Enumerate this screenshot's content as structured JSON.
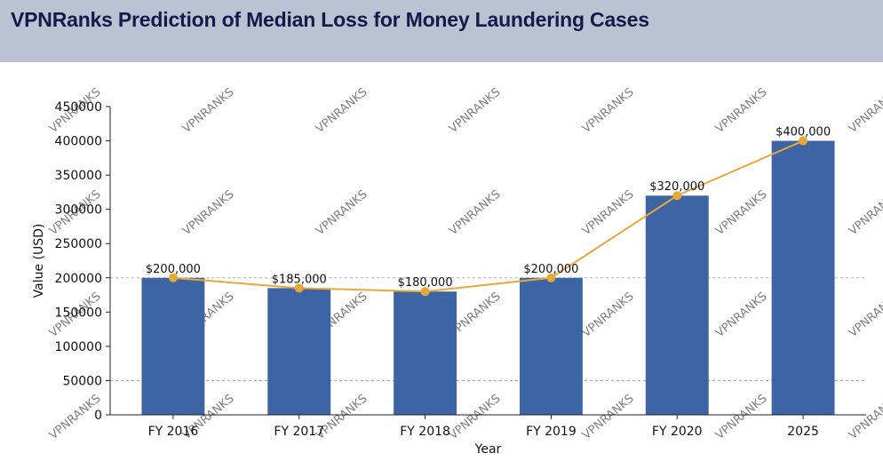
{
  "header": {
    "title": "VPNRanks Prediction of Median Loss for Money Laundering Cases"
  },
  "watermark_text": "VPNRANKS",
  "colors": {
    "header_bg": "#b9c3d1",
    "title": "#131a4c",
    "bar": "#3d65a3",
    "line": "#e8a838",
    "grid": "#9a9a9a"
  },
  "chart_data": {
    "type": "bar",
    "categories": [
      "FY 2016",
      "FY 2017",
      "FY 2018",
      "FY 2019",
      "FY 2020",
      "2025"
    ],
    "series": [
      {
        "type": "bar",
        "values": [
          200000,
          185000,
          180000,
          200000,
          320000,
          400000
        ]
      },
      {
        "type": "line",
        "values": [
          200000,
          185000,
          180000,
          200000,
          320000,
          400000
        ]
      }
    ],
    "data_labels": [
      "$200,000",
      "$185,000",
      "$180,000",
      "$200,000",
      "$320,000",
      "$400,000"
    ],
    "xlabel": "Year",
    "ylabel": "Value (USD)",
    "ylim": [
      0,
      450000
    ],
    "yticks": [
      0,
      50000,
      100000,
      150000,
      200000,
      250000,
      300000,
      350000,
      400000,
      450000
    ],
    "ytick_labels": [
      "0",
      "50000",
      "100000",
      "150000",
      "200000",
      "250000",
      "300000",
      "350000",
      "400000",
      "450000"
    ],
    "grid": "y-dashed"
  }
}
